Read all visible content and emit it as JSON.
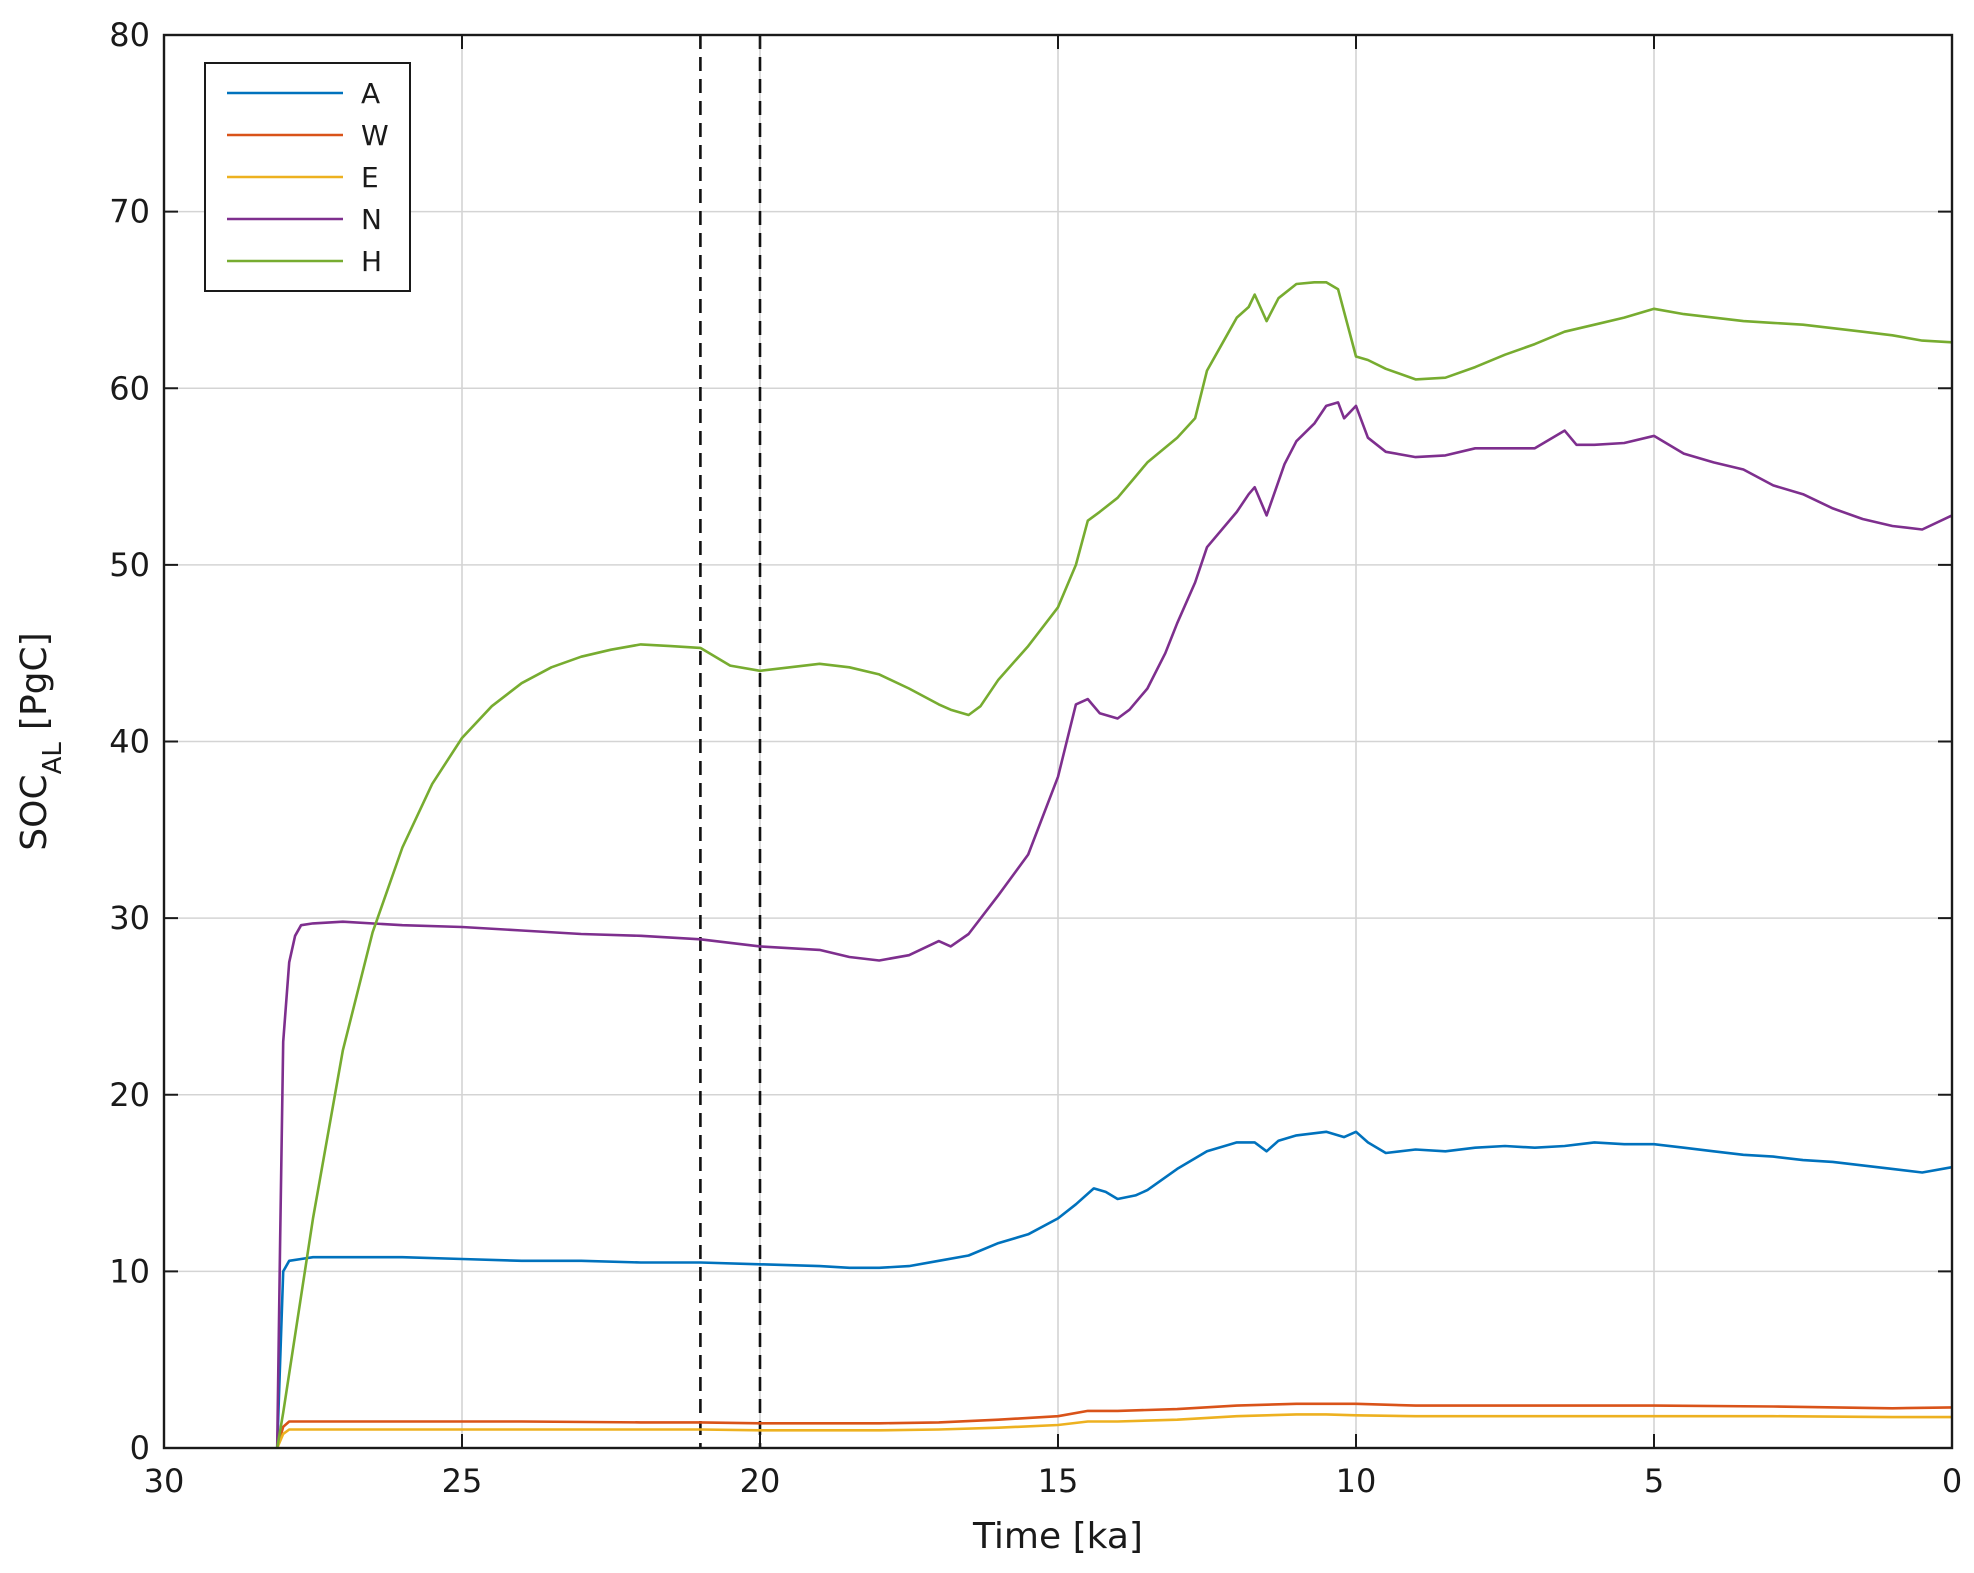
{
  "chart_data": {
    "type": "line",
    "xlabel": "Time [ka]",
    "ylabel": {
      "main": "SOC",
      "sub": "AL",
      "unit": "[PgC]"
    },
    "xlim": [
      30,
      0
    ],
    "ylim": [
      0,
      80
    ],
    "x_reversed": true,
    "xticks": [
      30,
      25,
      20,
      15,
      10,
      5,
      0
    ],
    "yticks": [
      0,
      10,
      20,
      30,
      40,
      50,
      60,
      70,
      80
    ],
    "grid": true,
    "legend_position": "top-left",
    "vertical_markers": [
      21,
      20
    ],
    "series": [
      {
        "name": "A",
        "color": "#0072BD",
        "x": [
          28.1,
          28.05,
          28.0,
          27.9,
          27.7,
          27.5,
          27.0,
          26.0,
          25.0,
          24.0,
          23.0,
          22.0,
          21.0,
          20.0,
          19.0,
          18.5,
          18.0,
          17.5,
          17.0,
          16.5,
          16.0,
          15.5,
          15.0,
          14.7,
          14.4,
          14.2,
          14.0,
          13.7,
          13.5,
          13.0,
          12.5,
          12.0,
          11.7,
          11.5,
          11.3,
          11.0,
          10.5,
          10.2,
          10.0,
          9.8,
          9.5,
          9.0,
          8.5,
          8.0,
          7.5,
          7.0,
          6.5,
          6.0,
          5.5,
          5.0,
          4.5,
          4.0,
          3.5,
          3.0,
          2.5,
          2.0,
          1.5,
          1.0,
          0.5,
          0.0
        ],
        "y": [
          0.0,
          5.0,
          10.0,
          10.6,
          10.7,
          10.8,
          10.8,
          10.8,
          10.7,
          10.6,
          10.6,
          10.5,
          10.5,
          10.4,
          10.3,
          10.2,
          10.2,
          10.3,
          10.6,
          10.9,
          11.6,
          12.1,
          13.0,
          13.8,
          14.7,
          14.5,
          14.1,
          14.3,
          14.6,
          15.8,
          16.8,
          17.3,
          17.3,
          16.8,
          17.4,
          17.7,
          17.9,
          17.6,
          17.9,
          17.3,
          16.7,
          16.9,
          16.8,
          17.0,
          17.1,
          17.0,
          17.1,
          17.3,
          17.2,
          17.2,
          17.0,
          16.8,
          16.6,
          16.5,
          16.3,
          16.2,
          16.0,
          15.8,
          15.6,
          15.9
        ]
      },
      {
        "name": "W",
        "color": "#D95319",
        "x": [
          28.1,
          28.0,
          27.9,
          27.5,
          26.0,
          24.0,
          22.0,
          21.0,
          20.0,
          18.0,
          17.0,
          16.0,
          15.0,
          14.5,
          14.0,
          13.0,
          12.0,
          11.0,
          10.5,
          10.0,
          9.0,
          7.0,
          5.0,
          3.0,
          1.0,
          0.0
        ],
        "y": [
          0.0,
          1.2,
          1.5,
          1.5,
          1.5,
          1.5,
          1.45,
          1.45,
          1.4,
          1.4,
          1.45,
          1.6,
          1.8,
          2.1,
          2.1,
          2.2,
          2.4,
          2.5,
          2.5,
          2.5,
          2.4,
          2.4,
          2.4,
          2.35,
          2.25,
          2.3
        ]
      },
      {
        "name": "E",
        "color": "#EDB120",
        "x": [
          28.1,
          28.0,
          27.9,
          27.5,
          26.0,
          24.0,
          22.0,
          21.0,
          20.0,
          18.0,
          17.0,
          16.0,
          15.0,
          14.5,
          14.0,
          13.0,
          12.0,
          11.0,
          10.5,
          10.0,
          9.0,
          7.0,
          5.0,
          3.0,
          1.0,
          0.0
        ],
        "y": [
          0.0,
          0.8,
          1.05,
          1.05,
          1.05,
          1.05,
          1.05,
          1.05,
          1.0,
          1.0,
          1.05,
          1.15,
          1.3,
          1.5,
          1.5,
          1.6,
          1.8,
          1.9,
          1.9,
          1.85,
          1.8,
          1.8,
          1.8,
          1.8,
          1.75,
          1.75
        ]
      },
      {
        "name": "N",
        "color": "#7E2F8E",
        "x": [
          28.1,
          28.05,
          28.0,
          27.9,
          27.8,
          27.7,
          27.5,
          27.0,
          26.0,
          25.0,
          24.0,
          23.0,
          22.0,
          21.0,
          20.0,
          19.0,
          18.5,
          18.0,
          17.5,
          17.0,
          16.8,
          16.5,
          16.0,
          15.5,
          15.0,
          14.7,
          14.5,
          14.3,
          14.0,
          13.8,
          13.5,
          13.2,
          13.0,
          12.7,
          12.5,
          12.0,
          11.8,
          11.7,
          11.5,
          11.2,
          11.0,
          10.7,
          10.5,
          10.3,
          10.2,
          10.0,
          9.8,
          9.5,
          9.0,
          8.5,
          8.0,
          7.5,
          7.0,
          6.5,
          6.3,
          6.0,
          5.5,
          5.0,
          4.5,
          4.0,
          3.5,
          3.0,
          2.5,
          2.0,
          1.5,
          1.0,
          0.5,
          0.0
        ],
        "y": [
          0.0,
          12.0,
          23.0,
          27.5,
          29.0,
          29.6,
          29.7,
          29.8,
          29.6,
          29.5,
          29.3,
          29.1,
          29.0,
          28.8,
          28.4,
          28.2,
          27.8,
          27.6,
          27.9,
          28.7,
          28.4,
          29.1,
          31.3,
          33.6,
          38.0,
          42.1,
          42.4,
          41.6,
          41.3,
          41.8,
          43.0,
          45.0,
          46.7,
          49.0,
          51.0,
          53.0,
          54.0,
          54.4,
          52.8,
          55.7,
          57.0,
          58.0,
          59.0,
          59.2,
          58.3,
          59.0,
          57.2,
          56.4,
          56.1,
          56.2,
          56.6,
          56.6,
          56.6,
          57.6,
          56.8,
          56.8,
          56.9,
          57.3,
          56.3,
          55.8,
          55.4,
          54.5,
          54.0,
          53.2,
          52.6,
          52.2,
          52.0,
          52.8
        ]
      },
      {
        "name": "H",
        "color": "#77AC30",
        "x": [
          28.1,
          28.0,
          27.5,
          27.0,
          26.5,
          26.0,
          25.5,
          25.0,
          24.5,
          24.0,
          23.5,
          23.0,
          22.5,
          22.0,
          21.5,
          21.0,
          20.5,
          20.0,
          19.5,
          19.0,
          18.5,
          18.0,
          17.5,
          17.0,
          16.8,
          16.5,
          16.3,
          16.0,
          15.5,
          15.0,
          14.7,
          14.5,
          14.3,
          14.0,
          13.7,
          13.5,
          13.0,
          12.7,
          12.5,
          12.2,
          12.0,
          11.8,
          11.7,
          11.5,
          11.3,
          11.0,
          10.7,
          10.5,
          10.3,
          10.0,
          9.8,
          9.5,
          9.0,
          8.5,
          8.0,
          7.5,
          7.0,
          6.5,
          6.0,
          5.5,
          5.0,
          4.5,
          4.0,
          3.5,
          3.0,
          2.5,
          2.0,
          1.5,
          1.0,
          0.5,
          0.0
        ],
        "y": [
          0.0,
          2.0,
          13.0,
          22.5,
          29.2,
          34.0,
          37.6,
          40.2,
          42.0,
          43.3,
          44.2,
          44.8,
          45.2,
          45.5,
          45.4,
          45.3,
          44.3,
          44.0,
          44.2,
          44.4,
          44.2,
          43.8,
          43.0,
          42.1,
          41.8,
          41.5,
          42.0,
          43.5,
          45.4,
          47.6,
          50.0,
          52.5,
          53.0,
          53.8,
          55.0,
          55.8,
          57.2,
          58.3,
          61.0,
          62.8,
          64.0,
          64.6,
          65.3,
          63.8,
          65.1,
          65.9,
          66.0,
          66.0,
          65.6,
          61.8,
          61.6,
          61.1,
          60.5,
          60.6,
          61.2,
          61.9,
          62.5,
          63.2,
          63.6,
          64.0,
          64.5,
          64.2,
          64.0,
          63.8,
          63.7,
          63.6,
          63.4,
          63.2,
          63.0,
          62.7,
          62.6
        ]
      }
    ]
  }
}
